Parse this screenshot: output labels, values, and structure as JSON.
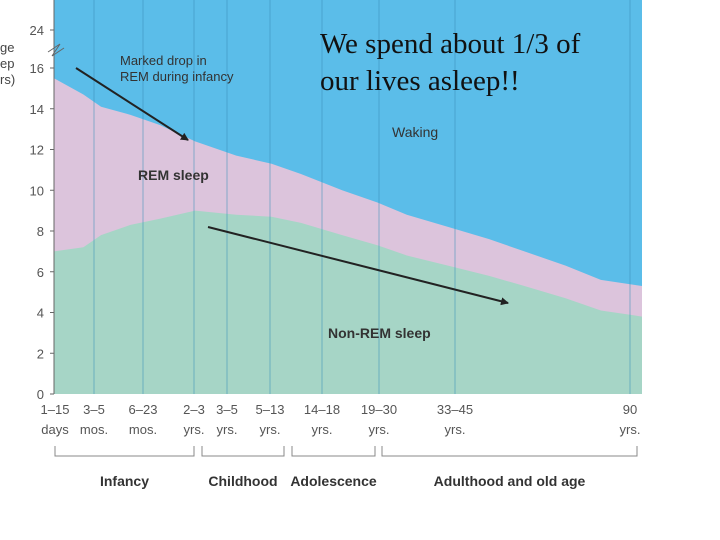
{
  "chart_data": {
    "type": "area",
    "title": "",
    "ylabel_fragment": "ge\nep\nrs)",
    "ylim": [
      0,
      24
    ],
    "yticks": [
      0,
      2,
      4,
      6,
      8,
      10,
      12,
      14,
      16,
      24
    ],
    "x_ticks": [
      {
        "top": "1–15",
        "bottom": "days"
      },
      {
        "top": "3–5",
        "bottom": "mos."
      },
      {
        "top": "6–23",
        "bottom": "mos."
      },
      {
        "top": "2–3",
        "bottom": "yrs."
      },
      {
        "top": "3–5",
        "bottom": "yrs."
      },
      {
        "top": "5–13",
        "bottom": "yrs."
      },
      {
        "top": "14–18",
        "bottom": "yrs."
      },
      {
        "top": "19–30",
        "bottom": "yrs."
      },
      {
        "top": "33–45",
        "bottom": "yrs."
      },
      {
        "top": "90",
        "bottom": "yrs."
      }
    ],
    "series": [
      {
        "name": "Non-REM sleep",
        "color": "#a6d5c6",
        "x_pos": [
          0,
          0.05,
          0.08,
          0.13,
          0.18,
          0.24,
          0.31,
          0.37,
          0.42,
          0.49,
          0.55,
          0.6,
          0.67,
          0.74,
          0.8,
          0.87,
          0.93,
          1
        ],
        "values": [
          7,
          7.2,
          7.8,
          8.3,
          8.6,
          9,
          8.8,
          8.7,
          8.4,
          7.8,
          7.3,
          6.8,
          6.3,
          5.8,
          5.3,
          4.7,
          4.1,
          3.8
        ]
      },
      {
        "name": "REM sleep",
        "color": "#dcc4dc",
        "x_pos": [
          0,
          0.04,
          0.08,
          0.13,
          0.18,
          0.24,
          0.31,
          0.37,
          0.42,
          0.49,
          0.55,
          0.6,
          0.67,
          0.74,
          0.8,
          0.87,
          0.93,
          1
        ],
        "values": [
          8.5,
          7.5,
          6.3,
          5.4,
          4.6,
          3.4,
          2.9,
          2.6,
          2.4,
          2.2,
          2.1,
          2,
          1.9,
          1.8,
          1.7,
          1.6,
          1.5,
          1.5
        ]
      },
      {
        "name": "Waking",
        "color": "#5bbde9"
      }
    ],
    "annotations": [
      {
        "text": "Marked drop in\nREM during infancy"
      },
      {
        "text": "Waking"
      },
      {
        "text": "REM sleep"
      },
      {
        "text": "Non-REM sleep"
      }
    ],
    "age_groups": [
      "Infancy",
      "Childhood",
      "Adolescence",
      "Adulthood and old age"
    ]
  },
  "overlay_text": "We spend about 1/3 of\nour lives asleep!!"
}
